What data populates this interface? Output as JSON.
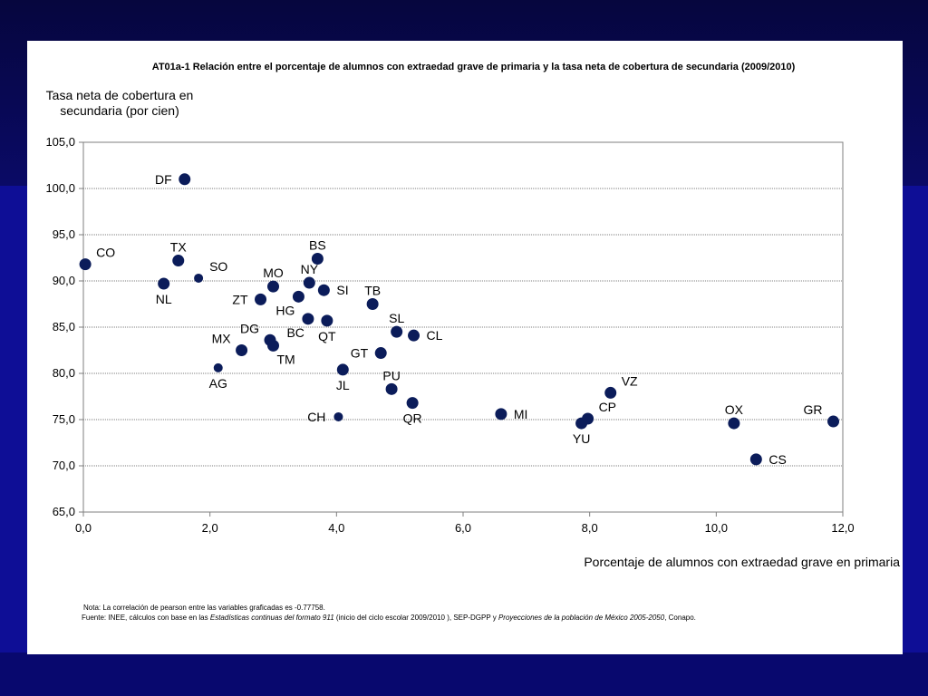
{
  "colors": {
    "background": "#0e0e96",
    "panel": "#ffffff",
    "marker": "#0b1c5a"
  },
  "chart_data": {
    "type": "scatter",
    "title": "AT01a-1 Relación entre el porcentaje de alumnos con extraedad grave de primaria y la tasa neta de cobertura de secundaria (2009/2010)",
    "xlabel": "Porcentaje de alumnos con extraedad grave en primaria",
    "ylabel": "Tasa neta de cobertura en secundaria (por cien)",
    "xlim": [
      0,
      12
    ],
    "ylim": [
      65,
      105
    ],
    "x_ticks": [
      "0,0",
      "2,0",
      "4,0",
      "6,0",
      "8,0",
      "10,0",
      "12,0"
    ],
    "y_ticks": [
      "65,0",
      "70,0",
      "75,0",
      "80,0",
      "85,0",
      "90,0",
      "95,0",
      "100,0",
      "105,0"
    ],
    "grid": "horizontal",
    "points": [
      {
        "label": "CO",
        "x": 0.03,
        "y": 91.8,
        "size": "big",
        "pos": "ne"
      },
      {
        "label": "NL",
        "x": 1.27,
        "y": 89.7,
        "size": "big",
        "pos": "s"
      },
      {
        "label": "TX",
        "x": 1.5,
        "y": 92.2,
        "size": "big",
        "pos": "n"
      },
      {
        "label": "DF",
        "x": 1.6,
        "y": 101.0,
        "size": "big",
        "pos": "w"
      },
      {
        "label": "SO",
        "x": 1.82,
        "y": 90.3,
        "size": "small",
        "pos": "ne"
      },
      {
        "label": "AG",
        "x": 2.13,
        "y": 80.6,
        "size": "small",
        "pos": "s"
      },
      {
        "label": "MX",
        "x": 2.5,
        "y": 82.5,
        "size": "big",
        "pos": "nw"
      },
      {
        "label": "ZT",
        "x": 2.8,
        "y": 88.0,
        "size": "big",
        "pos": "w"
      },
      {
        "label": "DG",
        "x": 2.95,
        "y": 83.6,
        "size": "big",
        "pos": "nw"
      },
      {
        "label": "TM",
        "x": 3.0,
        "y": 83.0,
        "size": "big",
        "pos": "se"
      },
      {
        "label": "MO",
        "x": 3.0,
        "y": 89.4,
        "size": "big",
        "pos": "n"
      },
      {
        "label": "HG",
        "x": 3.4,
        "y": 88.3,
        "size": "big",
        "pos": "sw"
      },
      {
        "label": "BC",
        "x": 3.55,
        "y": 85.9,
        "size": "big",
        "pos": "sw"
      },
      {
        "label": "NY",
        "x": 3.57,
        "y": 89.8,
        "size": "big",
        "pos": "n"
      },
      {
        "label": "BS",
        "x": 3.7,
        "y": 92.4,
        "size": "big",
        "pos": "n"
      },
      {
        "label": "SI",
        "x": 3.8,
        "y": 89.0,
        "size": "big",
        "pos": "e"
      },
      {
        "label": "QT",
        "x": 3.85,
        "y": 85.7,
        "size": "big",
        "pos": "s"
      },
      {
        "label": "CH",
        "x": 4.03,
        "y": 75.3,
        "size": "small",
        "pos": "w"
      },
      {
        "label": "JL",
        "x": 4.1,
        "y": 80.4,
        "size": "big",
        "pos": "s"
      },
      {
        "label": "TB",
        "x": 4.57,
        "y": 87.5,
        "size": "big",
        "pos": "n"
      },
      {
        "label": "GT",
        "x": 4.7,
        "y": 82.2,
        "size": "big",
        "pos": "w"
      },
      {
        "label": "PU",
        "x": 4.87,
        "y": 78.3,
        "size": "big",
        "pos": "n"
      },
      {
        "label": "SL",
        "x": 4.95,
        "y": 84.5,
        "size": "big",
        "pos": "n"
      },
      {
        "label": "QR",
        "x": 5.2,
        "y": 76.8,
        "size": "big",
        "pos": "s"
      },
      {
        "label": "CL",
        "x": 5.22,
        "y": 84.1,
        "size": "big",
        "pos": "e"
      },
      {
        "label": "MI",
        "x": 6.6,
        "y": 75.6,
        "size": "big",
        "pos": "e"
      },
      {
        "label": "YU",
        "x": 7.87,
        "y": 74.6,
        "size": "big",
        "pos": "s"
      },
      {
        "label": "CP",
        "x": 7.97,
        "y": 75.1,
        "size": "big",
        "pos": "ne"
      },
      {
        "label": "VZ",
        "x": 8.33,
        "y": 77.9,
        "size": "big",
        "pos": "ne"
      },
      {
        "label": "OX",
        "x": 10.28,
        "y": 74.6,
        "size": "big",
        "pos": "n"
      },
      {
        "label": "CS",
        "x": 10.63,
        "y": 70.7,
        "size": "big",
        "pos": "e"
      },
      {
        "label": "GR",
        "x": 11.85,
        "y": 74.8,
        "size": "big",
        "pos": "nw"
      }
    ]
  },
  "notes": {
    "correlation": "Nota: La correlación de  pearson  entre las variables graficadas es -0.77758.",
    "source_prefix": "Fuente: INEE, cálculos con base en las ",
    "source_italic_1": "Estadísticas continuas del formato 911",
    "source_middle": " (inicio del  ciclo escolar 2009/2010 ), SEP-DGPP y ",
    "source_italic_2": "Proyecciones de la población de México 2005-2050",
    "source_suffix": ", Conapo."
  }
}
